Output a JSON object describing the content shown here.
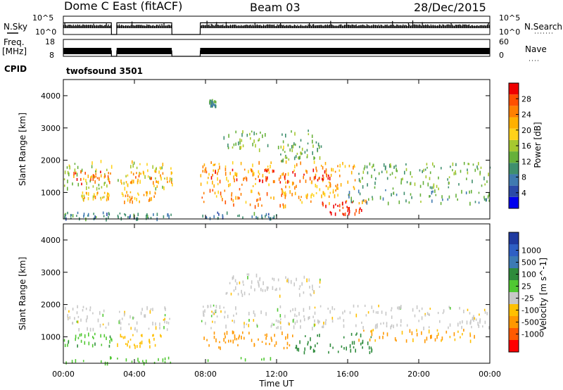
{
  "header": {
    "radar": "Dome C East (fitACF)",
    "beam": "Beam 03",
    "date": "28/Dec/2015"
  },
  "aux_labels": {
    "nsky": "N.Sky",
    "nsearch": "N.Search",
    "freq": "Freq.",
    "freq_unit": "[MHz]",
    "nave": "Nave",
    "cpid": "CPID",
    "cpid_value": "twofsound 3501"
  },
  "colors": {
    "power_scale": [
      "#0000ee",
      "#2b4aa8",
      "#3f7ab0",
      "#3f8f6e",
      "#66b03a",
      "#a6c82f",
      "#ffd21a",
      "#ffb000",
      "#ff8000",
      "#ff5000",
      "#ee0000"
    ],
    "velocity_scale": [
      "#ff0000",
      "#ff5a00",
      "#ff9800",
      "#ffc000",
      "#c8c8c8",
      "#50c832",
      "#2e8b3c",
      "#3c7ab4",
      "#2e5fc4",
      "#1f3aa0"
    ]
  },
  "chart_data": [
    {
      "type": "line",
      "title": "N.Sky / N.Search",
      "ylabel": "N.Sky",
      "y2label": "N.Search",
      "yticks": [
        "10^5",
        "10^0"
      ],
      "y2ticks": [
        "10^5",
        "10^0"
      ],
      "ylim": [
        0,
        5
      ],
      "x": [
        0,
        2.7,
        2.71,
        3.0,
        3.01,
        6.1,
        6.11,
        7.7,
        7.71,
        24
      ],
      "values": [
        3.2,
        3.2,
        0,
        0,
        3.2,
        3.2,
        0,
        0,
        3.2,
        3.2
      ]
    },
    {
      "type": "line",
      "title": "Freq. / Nave",
      "ylabel": "Freq. [MHz]",
      "y2label": "Nave",
      "yticks": [
        "18",
        "8"
      ],
      "y2ticks": [
        "60",
        "0"
      ],
      "ylim": [
        8,
        18
      ],
      "x": [
        0,
        2.7,
        2.71,
        3.0,
        3.01,
        6.1,
        6.11,
        7.7,
        7.71,
        24
      ],
      "values": [
        11.3,
        11.3,
        8,
        8,
        11.3,
        11.3,
        8,
        8,
        11.3,
        11.3
      ]
    },
    {
      "type": "heatmap",
      "title": "Power",
      "xlabel": "Time UT",
      "ylabel": "Slant Range [km]",
      "colorbar_label": "Power [dB]",
      "colorbar_ticks": [
        "4",
        "8",
        "12",
        "16",
        "20",
        "24",
        "28"
      ],
      "xticks": [
        "00:00",
        "04:00",
        "08:00",
        "12:00",
        "16:00",
        "20:00",
        "00:00"
      ],
      "yticks": [
        "1000",
        "2000",
        "3000",
        "4000"
      ],
      "xlim": [
        0,
        24
      ],
      "ylim": [
        180,
        4500
      ],
      "clim": [
        0,
        32
      ],
      "data_gaps": [
        [
          2.7,
          3.0
        ],
        [
          6.1,
          7.7
        ]
      ],
      "regions": [
        {
          "t0": 0.0,
          "t1": 2.7,
          "r0": 1150,
          "r1": 2050,
          "value": 16
        },
        {
          "t0": 0.5,
          "t1": 2.7,
          "r0": 1300,
          "r1": 1700,
          "value": 26
        },
        {
          "t0": 1.0,
          "t1": 2.6,
          "r0": 800,
          "r1": 1050,
          "value": 20
        },
        {
          "t0": 0.0,
          "t1": 2.7,
          "r0": 220,
          "r1": 420,
          "value": 9
        },
        {
          "t0": 3.0,
          "t1": 6.1,
          "r0": 1150,
          "r1": 2000,
          "value": 17
        },
        {
          "t0": 3.5,
          "t1": 6.1,
          "r0": 1350,
          "r1": 1700,
          "value": 24
        },
        {
          "t0": 3.2,
          "t1": 5.2,
          "r0": 750,
          "r1": 1050,
          "value": 22
        },
        {
          "t0": 3.0,
          "t1": 6.1,
          "r0": 220,
          "r1": 380,
          "value": 9
        },
        {
          "t0": 7.7,
          "t1": 16.5,
          "r0": 1200,
          "r1": 2000,
          "value": 22
        },
        {
          "t0": 7.8,
          "t1": 15.0,
          "r0": 1350,
          "r1": 1750,
          "value": 29
        },
        {
          "t0": 7.7,
          "t1": 12.5,
          "r0": 600,
          "r1": 1150,
          "value": 24
        },
        {
          "t0": 12.0,
          "t1": 17.0,
          "r0": 700,
          "r1": 1200,
          "value": 22
        },
        {
          "t0": 14.5,
          "t1": 16.8,
          "r0": 350,
          "r1": 750,
          "value": 30
        },
        {
          "t0": 9.0,
          "t1": 14.5,
          "r0": 2350,
          "r1": 2950,
          "value": 14
        },
        {
          "t0": 12.0,
          "t1": 14.5,
          "r0": 2000,
          "r1": 2400,
          "value": 13
        },
        {
          "t0": 16.5,
          "t1": 24.0,
          "r0": 1150,
          "r1": 1950,
          "value": 13
        },
        {
          "t0": 16.0,
          "t1": 24.0,
          "r0": 700,
          "r1": 1100,
          "value": 11
        },
        {
          "t0": 7.7,
          "t1": 12.0,
          "r0": 220,
          "r1": 420,
          "value": 8
        },
        {
          "t0": 8.2,
          "t1": 8.6,
          "r0": 3700,
          "r1": 3900,
          "value": 10
        }
      ]
    },
    {
      "type": "heatmap",
      "title": "Velocity",
      "xlabel": "Time UT",
      "ylabel": "Slant Range [km]",
      "colorbar_label": "Velocity [m s^-1]",
      "colorbar_ticks": [
        "1000",
        "500",
        "100",
        "25",
        "-25",
        "-100",
        "-500",
        "-1000"
      ],
      "xticks": [
        "00:00",
        "04:00",
        "08:00",
        "12:00",
        "16:00",
        "20:00",
        "00:00"
      ],
      "yticks": [
        "1000",
        "2000",
        "3000",
        "4000"
      ],
      "xlim": [
        0,
        24
      ],
      "ylim": [
        180,
        4500
      ],
      "data_gaps": [
        [
          2.7,
          3.0
        ],
        [
          6.1,
          7.7
        ]
      ],
      "regions": [
        {
          "t0": 0.0,
          "t1": 2.7,
          "r0": 1250,
          "r1": 2000,
          "value": 0
        },
        {
          "t0": 0.0,
          "t1": 2.7,
          "r0": 750,
          "r1": 1150,
          "value": 80
        },
        {
          "t0": 3.0,
          "t1": 6.1,
          "r0": 1200,
          "r1": 1950,
          "value": 0
        },
        {
          "t0": 3.0,
          "t1": 5.5,
          "r0": 700,
          "r1": 1100,
          "value": -60
        },
        {
          "t0": 7.7,
          "t1": 24.0,
          "r0": 1300,
          "r1": 2000,
          "value": 0
        },
        {
          "t0": 7.7,
          "t1": 13.0,
          "r0": 650,
          "r1": 1200,
          "value": -150
        },
        {
          "t0": 13.0,
          "t1": 17.5,
          "r0": 550,
          "r1": 1150,
          "value": 150
        },
        {
          "t0": 16.5,
          "t1": 23.5,
          "r0": 900,
          "r1": 1250,
          "value": -100
        },
        {
          "t0": 9.0,
          "t1": 14.5,
          "r0": 2300,
          "r1": 3000,
          "value": 0
        },
        {
          "t0": 0.0,
          "t1": 12.0,
          "r0": 220,
          "r1": 400,
          "value": 60
        }
      ]
    }
  ]
}
